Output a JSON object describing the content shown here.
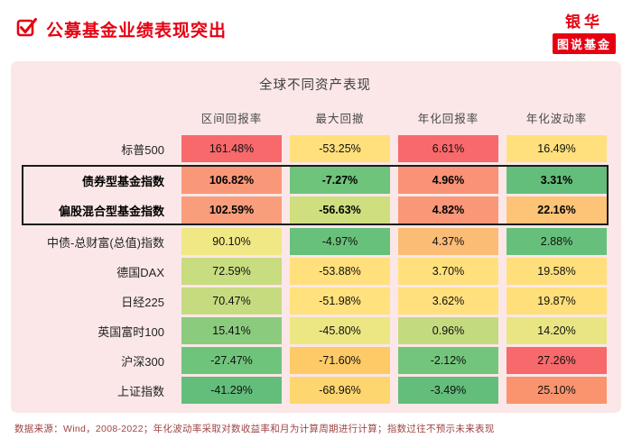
{
  "header": {
    "title": "公募基金业绩表现突出"
  },
  "logo": {
    "brand": "银华",
    "series": "图说基金"
  },
  "footnote": "数据来源：Wind，2008-2022；年化波动率采取对数收益率和月为计算周期进行计算；指数过往不预示未来表现",
  "colors": {
    "accent_red": "#e60012",
    "card_bg": "#fbe7e7",
    "highlight_border": "#1b1b1b"
  },
  "chart_data": {
    "type": "heatmap",
    "title": "全球不同资产表现",
    "columns": [
      "区间回报率",
      "最大回撤",
      "年化回报率",
      "年化波动率"
    ],
    "rows": [
      {
        "label": "标普500",
        "highlighted": false,
        "values": [
          "161.48%",
          "-53.25%",
          "6.61%",
          "16.49%"
        ],
        "colors": [
          "#f8696b",
          "#ffe07c",
          "#f8696b",
          "#ffe07d"
        ]
      },
      {
        "label": "债券型基金指数",
        "highlighted": true,
        "values": [
          "106.82%",
          "-7.27%",
          "4.96%",
          "3.31%"
        ],
        "colors": [
          "#f99879",
          "#6ec47b",
          "#f99276",
          "#63be7b"
        ]
      },
      {
        "label": "偏股混合型基金指数",
        "highlighted": true,
        "values": [
          "102.59%",
          "-56.63%",
          "4.82%",
          "22.16%"
        ],
        "colors": [
          "#f99d7c",
          "#cfdf80",
          "#f99778",
          "#fdc377"
        ]
      },
      {
        "label": "中债-总财富(总值)指数",
        "highlighted": false,
        "values": [
          "90.10%",
          "-4.97%",
          "4.37%",
          "2.88%"
        ],
        "colors": [
          "#f0e884",
          "#68c17b",
          "#fbbc76",
          "#66c07b"
        ]
      },
      {
        "label": "德国DAX",
        "highlighted": false,
        "values": [
          "72.59%",
          "-53.88%",
          "3.70%",
          "19.58%"
        ],
        "colors": [
          "#c8dc80",
          "#ffe07c",
          "#ffe07c",
          "#ffdf7b"
        ]
      },
      {
        "label": "日经225",
        "highlighted": false,
        "values": [
          "70.47%",
          "-51.98%",
          "3.62%",
          "19.87%"
        ],
        "colors": [
          "#c6db80",
          "#ffe17d",
          "#ffe07c",
          "#ffdf7a"
        ]
      },
      {
        "label": "英国富时100",
        "highlighted": false,
        "values": [
          "15.41%",
          "-45.80%",
          "0.96%",
          "14.20%"
        ],
        "colors": [
          "#8bcb7e",
          "#ece683",
          "#c3da7f",
          "#e9e583"
        ]
      },
      {
        "label": "沪深300",
        "highlighted": false,
        "values": [
          "-27.47%",
          "-71.60%",
          "-2.12%",
          "27.26%"
        ],
        "colors": [
          "#6fc47b",
          "#fdca67",
          "#74c57c",
          "#f8696b"
        ]
      },
      {
        "label": "上证指数",
        "highlighted": false,
        "values": [
          "-41.29%",
          "-68.96%",
          "-3.49%",
          "25.10%"
        ],
        "colors": [
          "#63be7b",
          "#fed66f",
          "#63be7b",
          "#f9946e"
        ]
      }
    ]
  }
}
